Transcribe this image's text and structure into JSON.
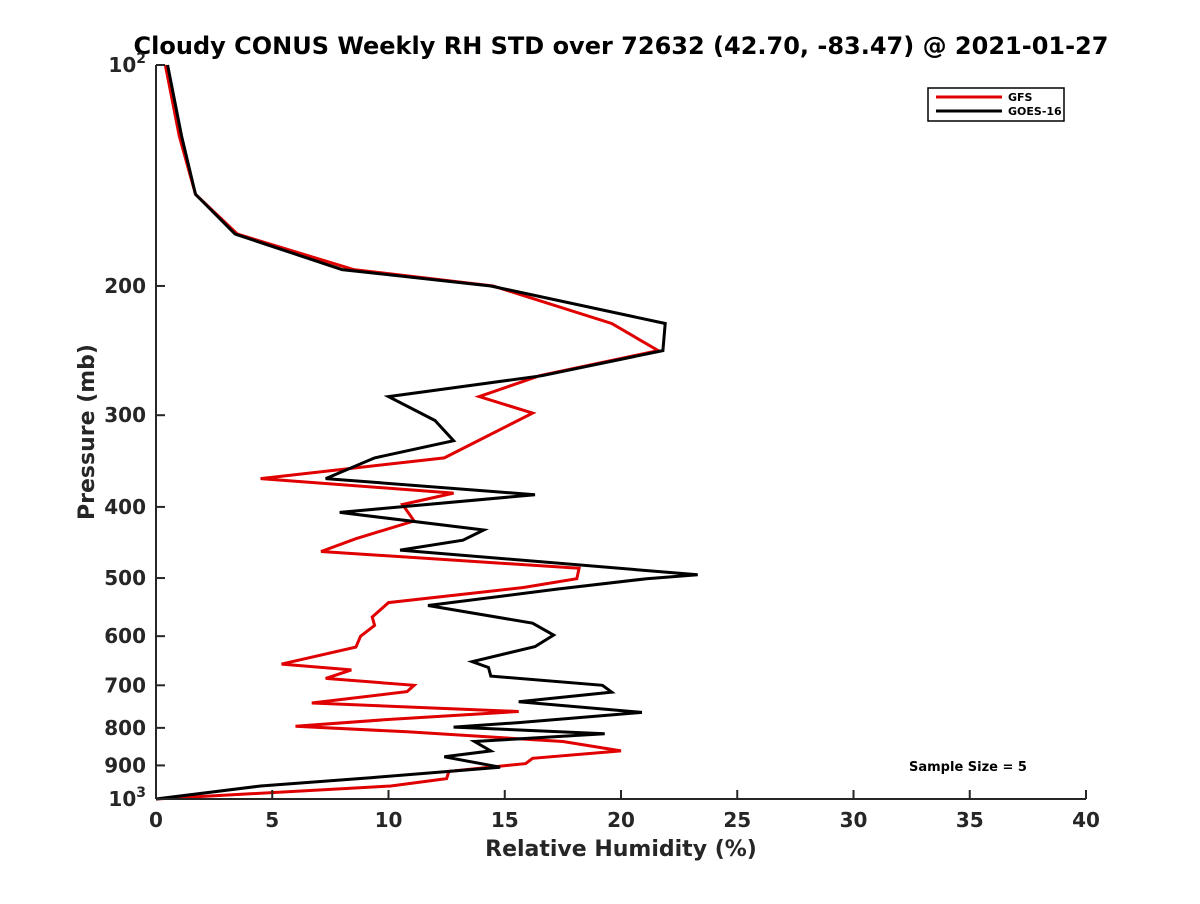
{
  "chart_data": {
    "type": "line",
    "title": "Cloudy CONUS Weekly RH STD over 72632 (42.70, -83.47) @ 2021-01-27",
    "xlabel": "Relative Humidity (%)",
    "ylabel": "Pressure (mb)",
    "xlim": [
      0,
      40
    ],
    "ylim": [
      100,
      1000
    ],
    "y_scale": "log",
    "y_reversed": true,
    "x_ticks": [
      0,
      5,
      10,
      15,
      20,
      25,
      30,
      35,
      40
    ],
    "x_tick_labels": [
      "0",
      "5",
      "10",
      "15",
      "20",
      "25",
      "30",
      "35",
      "40"
    ],
    "y_ticks": [
      100,
      200,
      300,
      400,
      500,
      600,
      700,
      800,
      900,
      1000
    ],
    "y_tick_labels": [
      {
        "base": "10",
        "exp": "2"
      },
      {
        "base": "200",
        "exp": ""
      },
      {
        "base": "300",
        "exp": ""
      },
      {
        "base": "400",
        "exp": ""
      },
      {
        "base": "500",
        "exp": ""
      },
      {
        "base": "600",
        "exp": ""
      },
      {
        "base": "700",
        "exp": ""
      },
      {
        "base": "800",
        "exp": ""
      },
      {
        "base": "900",
        "exp": ""
      },
      {
        "base": "10",
        "exp": "3"
      }
    ],
    "grid": false,
    "legend_position": "top-right",
    "annotation": "Sample Size = 5",
    "series": [
      {
        "name": "GFS",
        "color": "#e00000",
        "points": [
          [
            0.4,
            100
          ],
          [
            1.0,
            125
          ],
          [
            1.7,
            150
          ],
          [
            3.5,
            170
          ],
          [
            8.5,
            190
          ],
          [
            14.5,
            200
          ],
          [
            19.6,
            225
          ],
          [
            21.6,
            245
          ],
          [
            16.5,
            265
          ],
          [
            13.9,
            283
          ],
          [
            16.2,
            298
          ],
          [
            12.4,
            343
          ],
          [
            4.5,
            366
          ],
          [
            12.8,
            383
          ],
          [
            10.6,
            397
          ],
          [
            11.1,
            418
          ],
          [
            8.6,
            442
          ],
          [
            7.1,
            460
          ],
          [
            18.2,
            485
          ],
          [
            18.1,
            501
          ],
          [
            15.8,
            515
          ],
          [
            10.0,
            540
          ],
          [
            9.3,
            565
          ],
          [
            9.4,
            580
          ],
          [
            8.8,
            600
          ],
          [
            8.6,
            621
          ],
          [
            5.4,
            655
          ],
          [
            8.4,
            667
          ],
          [
            7.3,
            685
          ],
          [
            11.1,
            700
          ],
          [
            10.8,
            714
          ],
          [
            6.7,
            740
          ],
          [
            15.6,
            760
          ],
          [
            9.8,
            780
          ],
          [
            6.0,
            796
          ],
          [
            10.8,
            810
          ],
          [
            17.5,
            835
          ],
          [
            20.0,
            860
          ],
          [
            16.2,
            880
          ],
          [
            15.9,
            895
          ],
          [
            12.6,
            917
          ],
          [
            12.5,
            938
          ],
          [
            10.1,
            960
          ],
          [
            0.0,
            1000
          ]
        ]
      },
      {
        "name": "GOES-16",
        "color": "#000000",
        "points": [
          [
            0.5,
            100
          ],
          [
            1.1,
            125
          ],
          [
            1.7,
            150
          ],
          [
            3.4,
            170
          ],
          [
            8.0,
            190
          ],
          [
            14.4,
            200
          ],
          [
            21.9,
            225
          ],
          [
            21.8,
            245
          ],
          [
            16.6,
            265
          ],
          [
            10.0,
            283
          ],
          [
            12.0,
            305
          ],
          [
            12.8,
            325
          ],
          [
            9.4,
            343
          ],
          [
            7.3,
            366
          ],
          [
            16.3,
            385
          ],
          [
            7.9,
            407
          ],
          [
            14.1,
            430
          ],
          [
            13.2,
            444
          ],
          [
            10.5,
            458
          ],
          [
            23.3,
            495
          ],
          [
            21.1,
            501
          ],
          [
            17.2,
            518
          ],
          [
            11.7,
            545
          ],
          [
            16.2,
            576
          ],
          [
            17.1,
            598
          ],
          [
            16.3,
            620
          ],
          [
            13.6,
            650
          ],
          [
            14.3,
            662
          ],
          [
            14.4,
            680
          ],
          [
            19.2,
            700
          ],
          [
            19.6,
            715
          ],
          [
            15.6,
            737
          ],
          [
            20.9,
            762
          ],
          [
            15.6,
            787
          ],
          [
            12.8,
            798
          ],
          [
            19.3,
            815
          ],
          [
            13.7,
            835
          ],
          [
            14.4,
            860
          ],
          [
            12.4,
            876
          ],
          [
            14.8,
            905
          ],
          [
            9.3,
            935
          ],
          [
            4.5,
            960
          ],
          [
            0.0,
            1000
          ]
        ]
      }
    ]
  }
}
